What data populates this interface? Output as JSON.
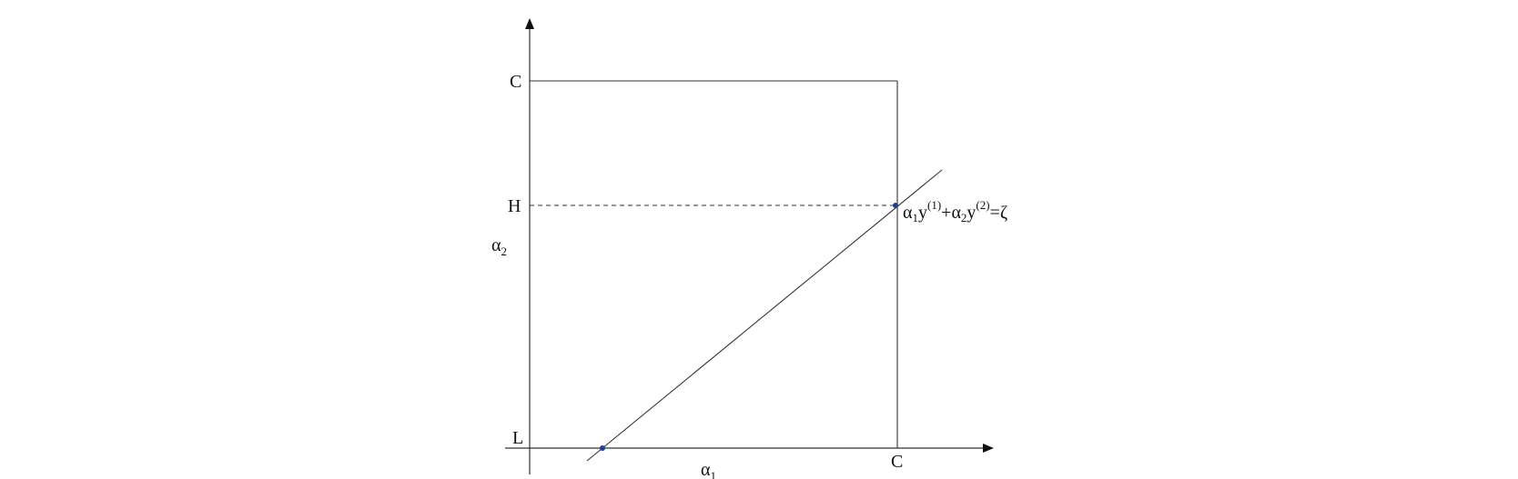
{
  "diagram": {
    "y_axis_top_label": "C",
    "y_axis_mid_label": "H",
    "y_axis_low_label": "L",
    "x_axis_right_label": "C",
    "x_axis_name": {
      "symbol": "α",
      "subscript": "1"
    },
    "y_axis_name": {
      "symbol": "α",
      "subscript": "2"
    },
    "constraint_equation": {
      "term1": {
        "symbol": "α",
        "subscript": "1",
        "base": "y",
        "superscript": "(1)"
      },
      "plus": "+",
      "term2": {
        "symbol": "α",
        "subscript": "2",
        "base": "y",
        "superscript": "(2)"
      },
      "equals": "=",
      "rhs": "ζ"
    },
    "colors": {
      "line": "#333333",
      "point": "#1f3f8f"
    }
  }
}
